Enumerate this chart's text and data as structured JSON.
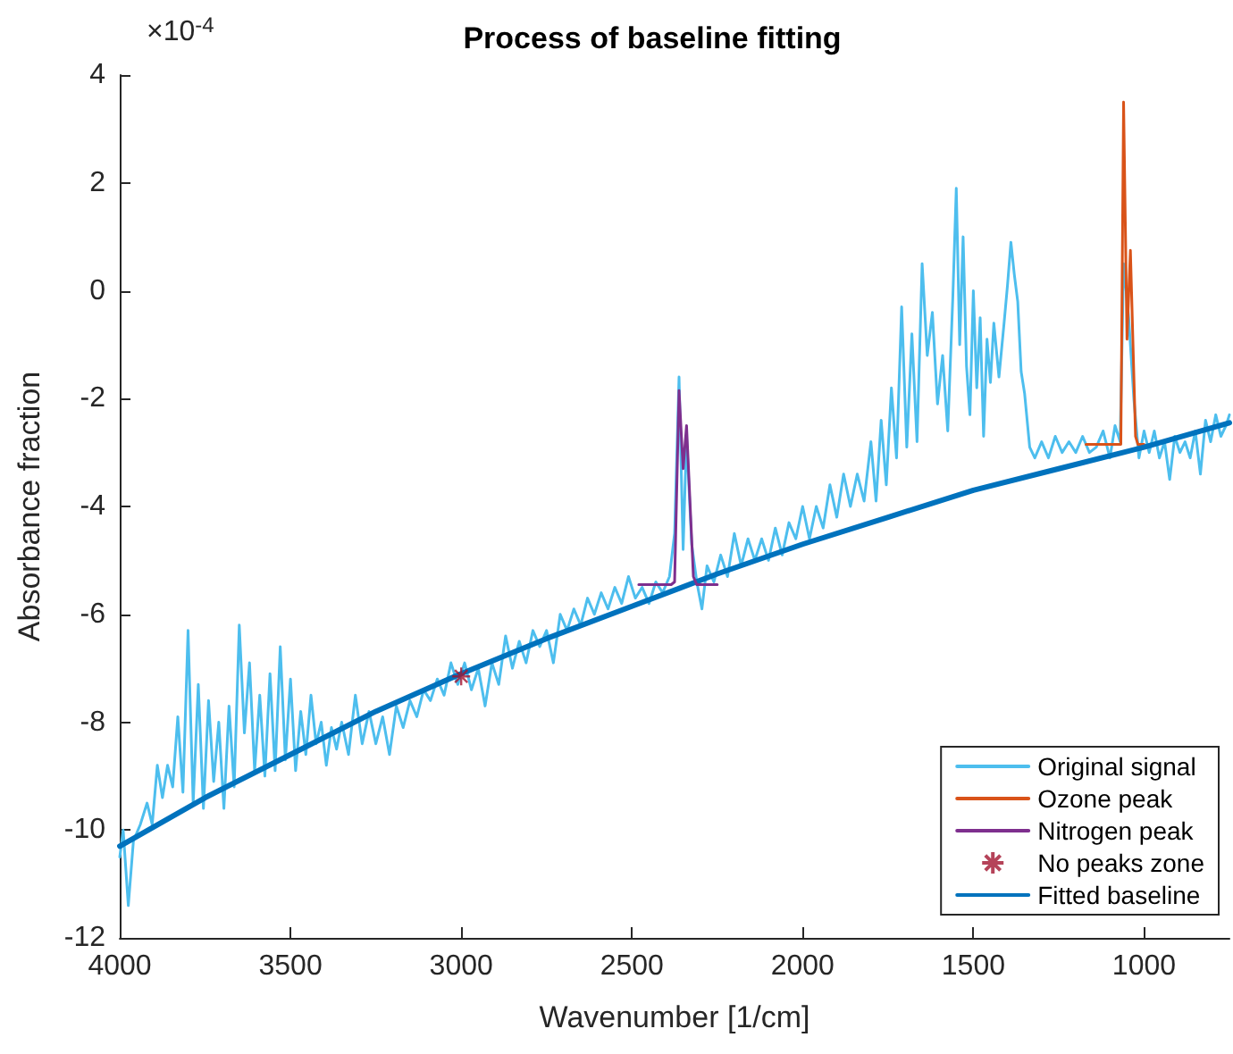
{
  "chart_data": {
    "type": "line",
    "title": "Process of baseline fitting",
    "xlabel": "Wavenumber [1/cm]",
    "ylabel": "Absorbance fraction",
    "annotations": [
      "×10$^{-4}$"
    ],
    "xlim": [
      4000,
      750
    ],
    "xticks": [
      4000,
      3500,
      3000,
      2500,
      2000,
      1500,
      1000
    ],
    "ylim": [
      -12,
      4
    ],
    "yticks": [
      -12,
      -10,
      -8,
      -6,
      -4,
      -2,
      0,
      2,
      4
    ],
    "grid": false,
    "legend": "bottom right",
    "series": [
      {
        "name": "Original signal",
        "color": "#4dbeee",
        "x": [
          4000,
          3990,
          3975,
          3960,
          3940,
          3920,
          3905,
          3890,
          3875,
          3860,
          3845,
          3830,
          3815,
          3800,
          3785,
          3770,
          3755,
          3740,
          3725,
          3710,
          3695,
          3680,
          3665,
          3650,
          3635,
          3620,
          3605,
          3590,
          3575,
          3560,
          3545,
          3530,
          3515,
          3500,
          3485,
          3470,
          3455,
          3440,
          3425,
          3410,
          3395,
          3380,
          3365,
          3350,
          3330,
          3310,
          3290,
          3270,
          3250,
          3230,
          3210,
          3190,
          3170,
          3150,
          3130,
          3110,
          3090,
          3070,
          3050,
          3030,
          3010,
          2990,
          2970,
          2950,
          2930,
          2910,
          2890,
          2870,
          2850,
          2830,
          2810,
          2790,
          2770,
          2750,
          2730,
          2710,
          2690,
          2670,
          2650,
          2630,
          2610,
          2590,
          2570,
          2550,
          2530,
          2510,
          2490,
          2470,
          2450,
          2430,
          2410,
          2390,
          2375,
          2362,
          2350,
          2340,
          2325,
          2310,
          2295,
          2280,
          2260,
          2240,
          2220,
          2200,
          2180,
          2160,
          2140,
          2120,
          2100,
          2080,
          2060,
          2040,
          2020,
          2000,
          1980,
          1960,
          1940,
          1920,
          1900,
          1880,
          1860,
          1840,
          1820,
          1800,
          1785,
          1770,
          1755,
          1740,
          1725,
          1710,
          1695,
          1680,
          1665,
          1650,
          1635,
          1620,
          1605,
          1590,
          1575,
          1560,
          1550,
          1540,
          1530,
          1520,
          1510,
          1500,
          1490,
          1480,
          1470,
          1460,
          1450,
          1440,
          1425,
          1410,
          1400,
          1390,
          1380,
          1370,
          1360,
          1350,
          1335,
          1320,
          1300,
          1280,
          1260,
          1240,
          1220,
          1200,
          1180,
          1160,
          1140,
          1120,
          1100,
          1085,
          1070,
          1060,
          1045,
          1030,
          1015,
          1000,
          985,
          970,
          955,
          940,
          925,
          910,
          895,
          880,
          865,
          850,
          835,
          820,
          805,
          790,
          775,
          760,
          750
        ],
        "values": [
          -10.5,
          -10.0,
          -11.4,
          -10.2,
          -9.9,
          -9.5,
          -9.9,
          -8.8,
          -9.4,
          -8.8,
          -9.2,
          -7.9,
          -9.3,
          -6.3,
          -9.5,
          -7.3,
          -9.6,
          -7.6,
          -9.1,
          -8.0,
          -9.6,
          -7.7,
          -9.2,
          -6.2,
          -8.2,
          -6.9,
          -8.9,
          -7.5,
          -9.0,
          -7.1,
          -8.9,
          -6.6,
          -8.7,
          -7.2,
          -8.9,
          -7.8,
          -8.6,
          -7.5,
          -8.4,
          -8.0,
          -8.8,
          -8.1,
          -8.5,
          -8.0,
          -8.6,
          -7.5,
          -8.4,
          -7.8,
          -8.4,
          -7.9,
          -8.6,
          -7.7,
          -8.1,
          -7.6,
          -7.9,
          -7.4,
          -7.6,
          -7.2,
          -7.5,
          -6.9,
          -7.3,
          -6.9,
          -7.4,
          -7.0,
          -7.7,
          -6.9,
          -7.3,
          -6.4,
          -7.0,
          -6.5,
          -6.9,
          -6.3,
          -6.6,
          -6.3,
          -6.9,
          -6.0,
          -6.3,
          -5.9,
          -6.2,
          -5.7,
          -6.0,
          -5.6,
          -5.9,
          -5.5,
          -5.8,
          -5.3,
          -5.7,
          -5.5,
          -5.8,
          -5.4,
          -5.6,
          -5.3,
          -4.5,
          -1.6,
          -4.8,
          -2.7,
          -4.7,
          -5.4,
          -5.9,
          -5.1,
          -5.4,
          -4.9,
          -5.3,
          -4.5,
          -5.1,
          -4.6,
          -5.0,
          -4.6,
          -5.0,
          -4.4,
          -4.9,
          -4.3,
          -4.6,
          -4.0,
          -4.6,
          -4.0,
          -4.4,
          -3.6,
          -4.2,
          -3.4,
          -4.0,
          -3.4,
          -3.9,
          -2.8,
          -3.9,
          -2.4,
          -3.6,
          -1.8,
          -3.1,
          -0.3,
          -2.9,
          -0.8,
          -2.8,
          0.5,
          -1.2,
          -0.4,
          -2.1,
          -1.2,
          -2.6,
          -0.1,
          1.9,
          -1.0,
          1.0,
          -1.4,
          -2.3,
          0.0,
          -1.8,
          -0.5,
          -2.7,
          -0.9,
          -1.7,
          -0.6,
          -1.6,
          -0.6,
          0.1,
          0.9,
          0.3,
          -0.2,
          -1.5,
          -1.9,
          -2.9,
          -3.1,
          -2.8,
          -3.1,
          -2.7,
          -3.0,
          -2.8,
          -3.0,
          -2.7,
          -3.0,
          -2.9,
          -2.6,
          -3.1,
          -2.5,
          -2.8,
          0.5,
          -0.5,
          -2.0,
          -3.1,
          -2.6,
          -3.0,
          -2.6,
          -3.1,
          -2.8,
          -3.5,
          -2.7,
          -3.0,
          -2.8,
          -3.1,
          -2.6,
          -3.4,
          -2.4,
          -2.8,
          -2.3,
          -2.7,
          -2.5,
          -2.3
        ]
      },
      {
        "name": "Ozone peak",
        "color": "#d95319",
        "x": [
          1170,
          1075,
          1068,
          1060,
          1050,
          1040,
          1025,
          1018,
          1000
        ],
        "values": [
          -2.85,
          -2.85,
          -2.85,
          3.5,
          -0.9,
          0.75,
          -2.7,
          -2.85,
          -2.85
        ]
      },
      {
        "name": "Nitrogen peak",
        "color": "#7e2f8e",
        "x": [
          2480,
          2385,
          2375,
          2362,
          2350,
          2340,
          2320,
          2310,
          2250
        ],
        "values": [
          -5.45,
          -5.45,
          -5.4,
          -1.85,
          -3.3,
          -2.5,
          -5.3,
          -5.45,
          -5.45
        ]
      },
      {
        "name": "No peaks zone",
        "type": "scatter",
        "marker": "cross",
        "color": "#a2142f",
        "x": [
          3000
        ],
        "values": [
          -7.15
        ]
      },
      {
        "name": "Fitted baseline",
        "color": "#0072bd",
        "x": [
          4000,
          3750,
          3500,
          3250,
          3000,
          2750,
          2500,
          2250,
          2000,
          1750,
          1500,
          1250,
          1000,
          750
        ],
        "values": [
          -10.3,
          -9.4,
          -8.6,
          -7.8,
          -7.1,
          -6.45,
          -5.85,
          -5.25,
          -4.7,
          -4.2,
          -3.7,
          -3.3,
          -2.9,
          -2.45
        ]
      }
    ]
  }
}
